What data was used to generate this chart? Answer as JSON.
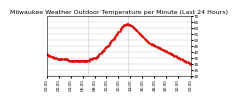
{
  "title": "Milwaukee Weather Outdoor Temperature per Minute (Last 24 Hours)",
  "line_color": "#dd0000",
  "line_style": "--",
  "line_width": 0.8,
  "marker": ".",
  "marker_size": 1.5,
  "bg_color": "#ffffff",
  "plot_bg_color": "#ffffff",
  "grid_color": "#cccccc",
  "vline_color": "#888888",
  "vline_positions": [
    0.28,
    0.56
  ],
  "ylim": [
    20,
    70
  ],
  "yticks": [
    20,
    25,
    30,
    35,
    40,
    45,
    50,
    55,
    60,
    65,
    70
  ],
  "ytick_labels": [
    "20",
    "25",
    "30",
    "35",
    "40",
    "45",
    "50",
    "55",
    "60",
    "65",
    "70"
  ],
  "title_fontsize": 4.5,
  "tick_fontsize": 3.0,
  "y_values": [
    38,
    37.5,
    37,
    36.5,
    36,
    36,
    35.5,
    35,
    35,
    34.5,
    34,
    34,
    34,
    34,
    34,
    34,
    34,
    34,
    33.5,
    33,
    33,
    33,
    33,
    33,
    33,
    33,
    33,
    33,
    33,
    33,
    33,
    33,
    33,
    33,
    33,
    33,
    34,
    34,
    34.5,
    35,
    35,
    35.5,
    36,
    37,
    38,
    39,
    40,
    41,
    42,
    43,
    44,
    45,
    46,
    47.5,
    49,
    50,
    51,
    52,
    54,
    55,
    56.5,
    57.5,
    59,
    60.5,
    61.5,
    62,
    62.5,
    63,
    63,
    62.5,
    62,
    61.5,
    61,
    60,
    59,
    58,
    57,
    56,
    55,
    54,
    53,
    52,
    51,
    50,
    49,
    48,
    47.5,
    47,
    46.5,
    46,
    45.5,
    45,
    44.5,
    44,
    43.5,
    43,
    42.5,
    42,
    41.5,
    41,
    40.5,
    40,
    39.5,
    39,
    38.5,
    38,
    37.5,
    37,
    36.5,
    36,
    35.5,
    35,
    34.5,
    34,
    33.5,
    33,
    32.5,
    32,
    31.5,
    31,
    30.5,
    30
  ]
}
